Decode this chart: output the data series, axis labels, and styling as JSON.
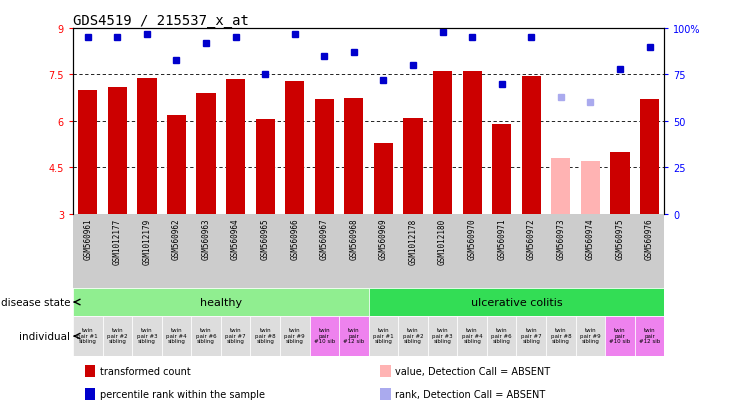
{
  "title": "GDS4519 / 215537_x_at",
  "samples": [
    "GSM560961",
    "GSM1012177",
    "GSM1012179",
    "GSM560962",
    "GSM560963",
    "GSM560964",
    "GSM560965",
    "GSM560966",
    "GSM560967",
    "GSM560968",
    "GSM560969",
    "GSM1012178",
    "GSM1012180",
    "GSM560970",
    "GSM560971",
    "GSM560972",
    "GSM560973",
    "GSM560974",
    "GSM560975",
    "GSM560976"
  ],
  "bar_values": [
    7.0,
    7.1,
    7.4,
    6.2,
    6.9,
    7.35,
    6.05,
    7.3,
    6.7,
    6.75,
    5.3,
    6.1,
    7.6,
    7.6,
    5.9,
    7.45,
    4.8,
    4.7,
    5.0,
    6.7
  ],
  "bar_absent": [
    false,
    false,
    false,
    false,
    false,
    false,
    false,
    false,
    false,
    false,
    false,
    false,
    false,
    false,
    false,
    false,
    true,
    true,
    false,
    false
  ],
  "rank_values": [
    95,
    95,
    97,
    83,
    92,
    95,
    75,
    97,
    85,
    87,
    72,
    80,
    98,
    95,
    70,
    95,
    63,
    60,
    78,
    90
  ],
  "rank_absent": [
    false,
    false,
    false,
    false,
    false,
    false,
    false,
    false,
    false,
    false,
    false,
    false,
    false,
    false,
    false,
    false,
    true,
    true,
    false,
    false
  ],
  "ylim": [
    3,
    9
  ],
  "yticks": [
    3,
    4.5,
    6,
    7.5,
    9
  ],
  "ytick_labels_left": [
    "3",
    "4.5",
    "6",
    "7.5",
    "9"
  ],
  "ytick_labels_right": [
    "0",
    "25",
    "50",
    "75",
    "100%"
  ],
  "bar_color": "#cc0000",
  "bar_absent_color": "#ffb3b3",
  "rank_color": "#0000cc",
  "rank_absent_color": "#aaaaee",
  "healthy_color": "#90ee90",
  "uc_color": "#33dd55",
  "individual_color_pink": "#ee82ee",
  "individual_color_gray": "#dddddd",
  "sample_bg_color": "#cccccc",
  "dotted_lines": [
    4.5,
    6.0,
    7.5
  ],
  "n_healthy": 10,
  "n_uc": 10,
  "individual_labels": [
    "twin\npair #1\nsibling",
    "twin\npair #2\nsibling",
    "twin\npair #3\nsibling",
    "twin\npair #4\nsibling",
    "twin\npair #6\nsibling",
    "twin\npair #7\nsibling",
    "twin\npair #8\nsibling",
    "twin\npair #9\nsibling",
    "twin\npair\n#10 sib",
    "twin\npair\n#12 sib",
    "twin\npair #1\nsibling",
    "twin\npair #2\nsibling",
    "twin\npair #3\nsibling",
    "twin\npair #4\nsibling",
    "twin\npair #6\nsibling",
    "twin\npair #7\nsibling",
    "twin\npair #8\nsibling",
    "twin\npair #9\nsibling",
    "twin\npair\n#10 sib",
    "twin\npair\n#12 sib"
  ],
  "legend_items": [
    {
      "color": "#cc0000",
      "label": "transformed count"
    },
    {
      "color": "#0000cc",
      "label": "percentile rank within the sample"
    },
    {
      "color": "#ffb3b3",
      "label": "value, Detection Call = ABSENT"
    },
    {
      "color": "#aaaaee",
      "label": "rank, Detection Call = ABSENT"
    }
  ]
}
